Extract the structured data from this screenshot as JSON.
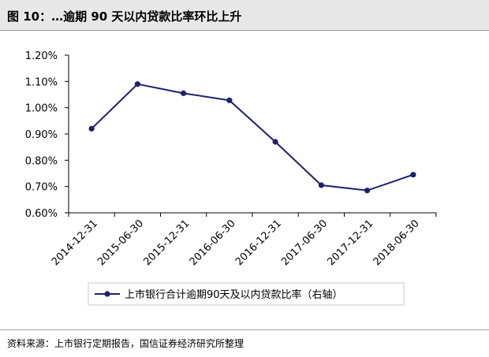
{
  "header": {
    "title": "图 10：…逾期 90 天以内贷款比率环比上升"
  },
  "footer": {
    "source": "资料来源：上市银行定期报告，国信证券经济研究所整理"
  },
  "colors": {
    "series": "#1f1f6e",
    "axis": "#000000",
    "title_bg": "#e8e8e8"
  },
  "chart_data": {
    "type": "line",
    "x": [
      "2014-12-31",
      "2015-06-30",
      "2015-12-31",
      "2016-06-30",
      "2016-12-31",
      "2017-06-30",
      "2017-12-31",
      "2018-06-30"
    ],
    "series": [
      {
        "name": "上市银行合计逾期90天及以内贷款比率（右轴）",
        "values": [
          0.92,
          1.09,
          1.055,
          1.028,
          0.87,
          0.705,
          0.685,
          0.745
        ]
      }
    ],
    "ylim": [
      0.6,
      1.2
    ],
    "yticks": [
      "0.60%",
      "0.70%",
      "0.80%",
      "0.90%",
      "1.00%",
      "1.10%",
      "1.20%"
    ],
    "title": "",
    "xlabel": "",
    "ylabel": "",
    "grid": false,
    "legend_position": "bottom"
  }
}
